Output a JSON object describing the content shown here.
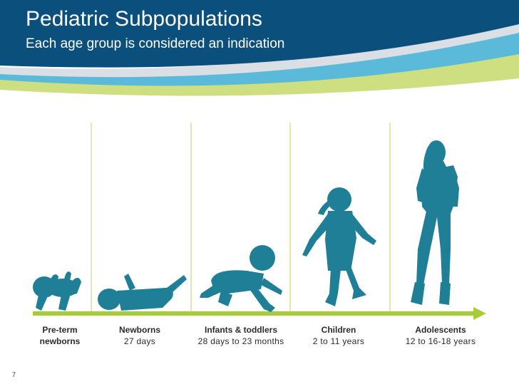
{
  "slide": {
    "title": "Pediatric Subpopulations",
    "subtitle": "Each age group is considered an indication",
    "page_number": "7"
  },
  "colors": {
    "header_dark_blue": "#0b4f7c",
    "header_light_blue": "#5bbad9",
    "header_green": "#c4d96a",
    "timeline_green": "#a7cc3a",
    "silhouette_teal": "#1f7f96"
  },
  "stages": [
    {
      "name": "Pre-term",
      "range": "newborns",
      "icon": "preterm-baby-silhouette-icon"
    },
    {
      "name": "Newborns",
      "range": "27 days",
      "icon": "newborn-silhouette-icon"
    },
    {
      "name": "Infants & toddlers",
      "range": "28 days to 23 months",
      "icon": "crawling-infant-silhouette-icon"
    },
    {
      "name": "Children",
      "range": "2 to 11 years",
      "icon": "walking-child-silhouette-icon"
    },
    {
      "name": "Adolescents",
      "range": "12 to 16-18 years",
      "icon": "standing-adolescent-silhouette-icon"
    }
  ]
}
